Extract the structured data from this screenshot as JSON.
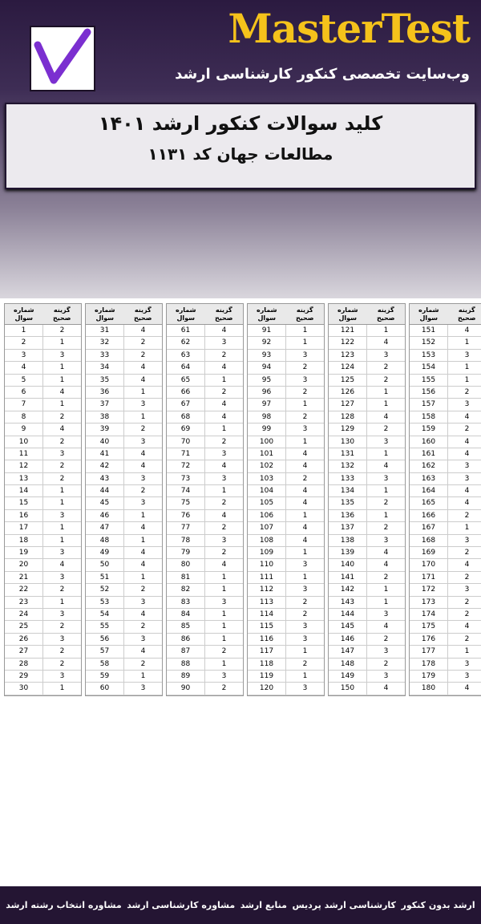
{
  "header": {
    "brand": "MasterTest",
    "tagline": "وب‌سایت تخصصی کنکور کارشناسی ارشد",
    "title": "کلید سوالات کنکور ارشد ۱۴۰۱",
    "subtitle": "مطالعات جهان کد ۱۱۳۱"
  },
  "table": {
    "headers": [
      "شماره سوال",
      "گزینه صحیح"
    ],
    "blocks": [
      [
        [
          1,
          2
        ],
        [
          2,
          1
        ],
        [
          3,
          3
        ],
        [
          4,
          1
        ],
        [
          5,
          1
        ],
        [
          6,
          4
        ],
        [
          7,
          1
        ],
        [
          8,
          2
        ],
        [
          9,
          4
        ],
        [
          10,
          2
        ],
        [
          11,
          3
        ],
        [
          12,
          2
        ],
        [
          13,
          2
        ],
        [
          14,
          1
        ],
        [
          15,
          1
        ],
        [
          16,
          3
        ],
        [
          17,
          1
        ],
        [
          18,
          1
        ],
        [
          19,
          3
        ],
        [
          20,
          4
        ],
        [
          21,
          3
        ],
        [
          22,
          2
        ],
        [
          23,
          1
        ],
        [
          24,
          3
        ],
        [
          25,
          2
        ],
        [
          26,
          3
        ],
        [
          27,
          2
        ],
        [
          28,
          2
        ],
        [
          29,
          3
        ],
        [
          30,
          1
        ]
      ],
      [
        [
          31,
          4
        ],
        [
          32,
          2
        ],
        [
          33,
          2
        ],
        [
          34,
          4
        ],
        [
          35,
          4
        ],
        [
          36,
          1
        ],
        [
          37,
          3
        ],
        [
          38,
          1
        ],
        [
          39,
          2
        ],
        [
          40,
          3
        ],
        [
          41,
          4
        ],
        [
          42,
          4
        ],
        [
          43,
          3
        ],
        [
          44,
          2
        ],
        [
          45,
          3
        ],
        [
          46,
          1
        ],
        [
          47,
          4
        ],
        [
          48,
          1
        ],
        [
          49,
          4
        ],
        [
          50,
          4
        ],
        [
          51,
          1
        ],
        [
          52,
          2
        ],
        [
          53,
          3
        ],
        [
          54,
          4
        ],
        [
          55,
          2
        ],
        [
          56,
          3
        ],
        [
          57,
          4
        ],
        [
          58,
          2
        ],
        [
          59,
          1
        ],
        [
          60,
          3
        ]
      ],
      [
        [
          61,
          4
        ],
        [
          62,
          3
        ],
        [
          63,
          2
        ],
        [
          64,
          4
        ],
        [
          65,
          1
        ],
        [
          66,
          2
        ],
        [
          67,
          4
        ],
        [
          68,
          4
        ],
        [
          69,
          1
        ],
        [
          70,
          2
        ],
        [
          71,
          3
        ],
        [
          72,
          4
        ],
        [
          73,
          3
        ],
        [
          74,
          1
        ],
        [
          75,
          2
        ],
        [
          76,
          4
        ],
        [
          77,
          2
        ],
        [
          78,
          3
        ],
        [
          79,
          2
        ],
        [
          80,
          4
        ],
        [
          81,
          1
        ],
        [
          82,
          1
        ],
        [
          83,
          3
        ],
        [
          84,
          1
        ],
        [
          85,
          1
        ],
        [
          86,
          1
        ],
        [
          87,
          2
        ],
        [
          88,
          1
        ],
        [
          89,
          3
        ],
        [
          90,
          2
        ]
      ],
      [
        [
          91,
          1
        ],
        [
          92,
          1
        ],
        [
          93,
          3
        ],
        [
          94,
          2
        ],
        [
          95,
          3
        ],
        [
          96,
          2
        ],
        [
          97,
          1
        ],
        [
          98,
          2
        ],
        [
          99,
          3
        ],
        [
          100,
          1
        ],
        [
          101,
          4
        ],
        [
          102,
          4
        ],
        [
          103,
          2
        ],
        [
          104,
          4
        ],
        [
          105,
          4
        ],
        [
          106,
          1
        ],
        [
          107,
          4
        ],
        [
          108,
          4
        ],
        [
          109,
          1
        ],
        [
          110,
          3
        ],
        [
          111,
          1
        ],
        [
          112,
          3
        ],
        [
          113,
          2
        ],
        [
          114,
          2
        ],
        [
          115,
          3
        ],
        [
          116,
          3
        ],
        [
          117,
          1
        ],
        [
          118,
          2
        ],
        [
          119,
          1
        ],
        [
          120,
          3
        ]
      ],
      [
        [
          121,
          1
        ],
        [
          122,
          4
        ],
        [
          123,
          3
        ],
        [
          124,
          2
        ],
        [
          125,
          2
        ],
        [
          126,
          1
        ],
        [
          127,
          1
        ],
        [
          128,
          4
        ],
        [
          129,
          2
        ],
        [
          130,
          3
        ],
        [
          131,
          1
        ],
        [
          132,
          4
        ],
        [
          133,
          3
        ],
        [
          134,
          1
        ],
        [
          135,
          2
        ],
        [
          136,
          1
        ],
        [
          137,
          2
        ],
        [
          138,
          3
        ],
        [
          139,
          4
        ],
        [
          140,
          4
        ],
        [
          141,
          2
        ],
        [
          142,
          1
        ],
        [
          143,
          1
        ],
        [
          144,
          3
        ],
        [
          145,
          4
        ],
        [
          146,
          2
        ],
        [
          147,
          3
        ],
        [
          148,
          2
        ],
        [
          149,
          3
        ],
        [
          150,
          4
        ]
      ],
      [
        [
          151,
          4
        ],
        [
          152,
          1
        ],
        [
          153,
          3
        ],
        [
          154,
          1
        ],
        [
          155,
          1
        ],
        [
          156,
          2
        ],
        [
          157,
          3
        ],
        [
          158,
          4
        ],
        [
          159,
          2
        ],
        [
          160,
          4
        ],
        [
          161,
          4
        ],
        [
          162,
          3
        ],
        [
          163,
          3
        ],
        [
          164,
          4
        ],
        [
          165,
          4
        ],
        [
          166,
          2
        ],
        [
          167,
          1
        ],
        [
          168,
          3
        ],
        [
          169,
          2
        ],
        [
          170,
          4
        ],
        [
          171,
          2
        ],
        [
          172,
          3
        ],
        [
          173,
          2
        ],
        [
          174,
          2
        ],
        [
          175,
          4
        ],
        [
          176,
          2
        ],
        [
          177,
          1
        ],
        [
          178,
          3
        ],
        [
          179,
          3
        ],
        [
          180,
          4
        ]
      ]
    ]
  },
  "footer": {
    "links": [
      "ارشد بدون کنکور",
      "کارشناسی ارشد پردیس",
      "منابع ارشد",
      "مشاوره کارشناسی ارشد",
      "مشاوره انتخاب رشته ارشد"
    ]
  }
}
